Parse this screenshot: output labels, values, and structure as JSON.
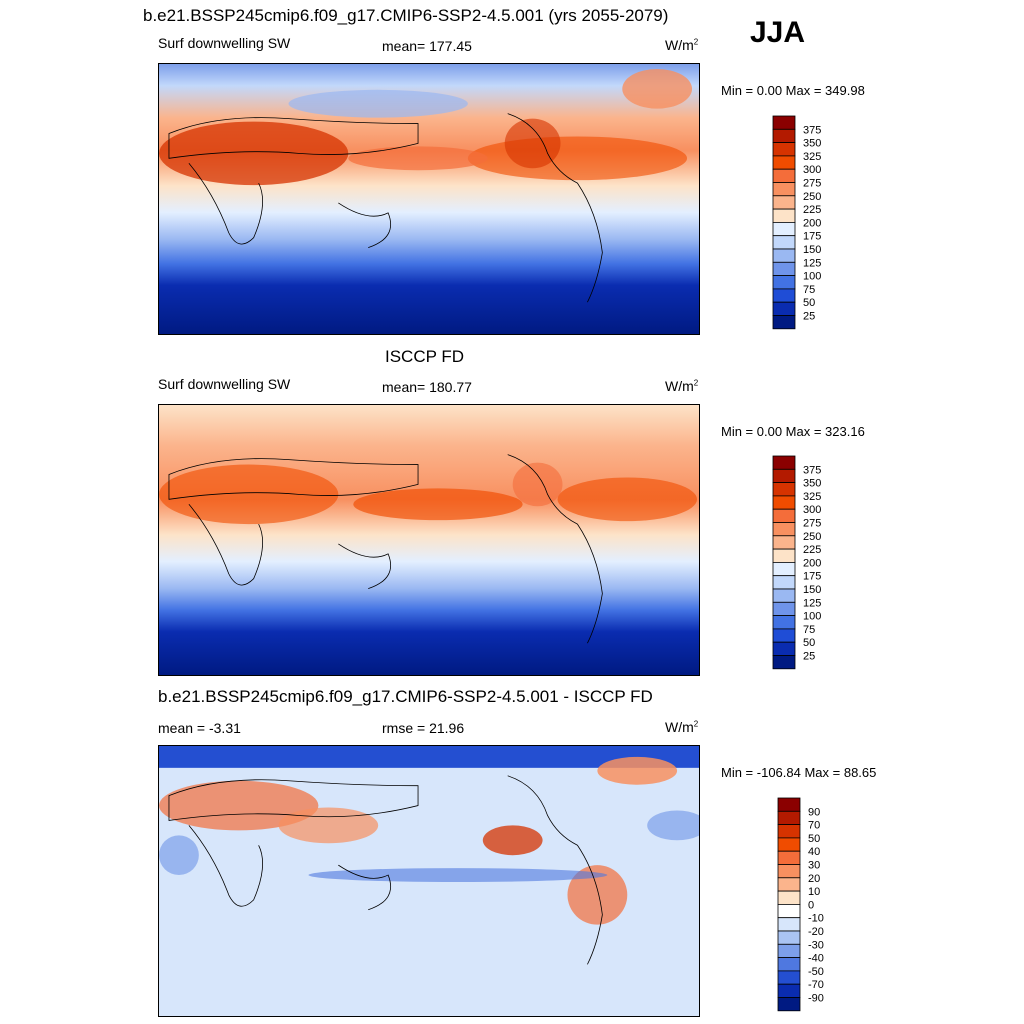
{
  "season": "JJA",
  "panels": [
    {
      "title": "b.e21.BSSP245cmip6.f09_g17.CMIP6-SSP2-4.5.001 (yrs 2055-2079)",
      "left_label": "Surf downwelling SW",
      "center_label": "mean= 177.45",
      "units_base": "W/m",
      "units_exp": "2",
      "minmax": "Min =   0.00 Max = 349.98"
    },
    {
      "title": "ISCCP FD",
      "left_label": "Surf downwelling SW",
      "center_label": "mean= 180.77",
      "units_base": "W/m",
      "units_exp": "2",
      "minmax": "Min =   0.00 Max = 323.16"
    },
    {
      "title": "b.e21.BSSP245cmip6.f09_g17.CMIP6-SSP2-4.5.001 - ISCCP FD",
      "left_label": "mean =  -3.31",
      "center_label": "rmse =  21.96",
      "units_base": "W/m",
      "units_exp": "2",
      "minmax": "Min = -106.84 Max =  88.65"
    }
  ],
  "colorbars": {
    "absolute": {
      "labels": [
        "375",
        "350",
        "325",
        "300",
        "275",
        "250",
        "225",
        "200",
        "175",
        "150",
        "125",
        "100",
        "75",
        "50",
        "25"
      ],
      "colors": [
        "#8b0000",
        "#b31a00",
        "#d63300",
        "#f04c00",
        "#f46d3a",
        "#f89060",
        "#fbb48c",
        "#fde3c8",
        "#e3efff",
        "#c2d8fb",
        "#9ab8f2",
        "#6f94ea",
        "#4272e3",
        "#1f4dd6",
        "#0a2cb0",
        "#001a82"
      ]
    },
    "difference": {
      "labels": [
        "90",
        "70",
        "50",
        "40",
        "30",
        "20",
        "10",
        "0",
        "-10",
        "-20",
        "-30",
        "-40",
        "-50",
        "-70",
        "-90"
      ],
      "colors": [
        "#8b0000",
        "#b31a00",
        "#d63300",
        "#f04c00",
        "#f46d3a",
        "#f89060",
        "#fbb48c",
        "#fde3c8",
        "#ffffff",
        "#d7e6fb",
        "#aac4f3",
        "#7d9fea",
        "#4f78e0",
        "#244fd1",
        "#0a2cb0",
        "#001a82"
      ]
    }
  }
}
